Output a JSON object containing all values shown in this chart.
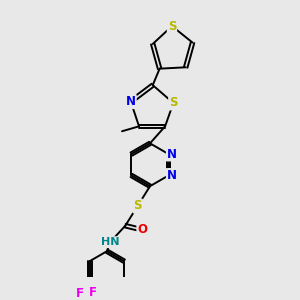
{
  "bg_color": "#e8e8e8",
  "bond_color": "#000000",
  "bond_width": 1.4,
  "atom_colors": {
    "S": "#b8b800",
    "N": "#0000ee",
    "O": "#ee0000",
    "F": "#ee00ee",
    "HN": "#008888",
    "C": "#000000"
  },
  "font_size": 8.5,
  "fig_size": [
    3.0,
    3.0
  ],
  "dpi": 100
}
